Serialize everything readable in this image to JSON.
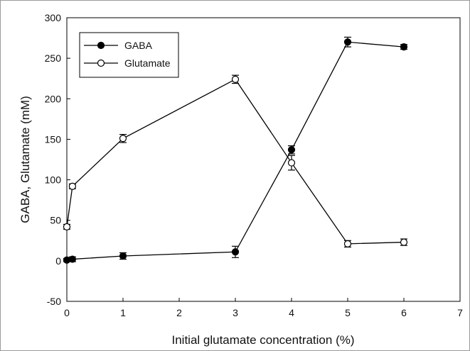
{
  "chart_data": {
    "type": "line",
    "title": "",
    "xlabel": "Initial glutamate concentration (%)",
    "ylabel": "GABA, Glutamate (mM)",
    "xlim": [
      0,
      7
    ],
    "ylim": [
      -50,
      300
    ],
    "xticks": [
      0,
      1,
      2,
      3,
      4,
      5,
      6,
      7
    ],
    "yticks": [
      -50,
      0,
      50,
      100,
      150,
      200,
      250,
      300
    ],
    "grid": false,
    "legend_position": "top-left",
    "series": [
      {
        "name": "GABA",
        "marker": "filled-circle",
        "color": "#000000",
        "points": [
          {
            "x": 0,
            "y": 1,
            "err": 2
          },
          {
            "x": 0.1,
            "y": 2,
            "err": 3
          },
          {
            "x": 1,
            "y": 6,
            "err": 4
          },
          {
            "x": 3,
            "y": 11,
            "err": 7
          },
          {
            "x": 4,
            "y": 137,
            "err": 5
          },
          {
            "x": 5,
            "y": 270,
            "err": 6
          },
          {
            "x": 6,
            "y": 264,
            "err": 3
          }
        ]
      },
      {
        "name": "Glutamate",
        "marker": "open-circle",
        "color": "#000000",
        "points": [
          {
            "x": 0,
            "y": 42,
            "err": 3
          },
          {
            "x": 0.1,
            "y": 92,
            "err": 3
          },
          {
            "x": 1,
            "y": 151,
            "err": 5
          },
          {
            "x": 3,
            "y": 224,
            "err": 5
          },
          {
            "x": 4,
            "y": 121,
            "err": 9
          },
          {
            "x": 5,
            "y": 21,
            "err": 4
          },
          {
            "x": 6,
            "y": 23,
            "err": 4
          }
        ]
      }
    ]
  }
}
